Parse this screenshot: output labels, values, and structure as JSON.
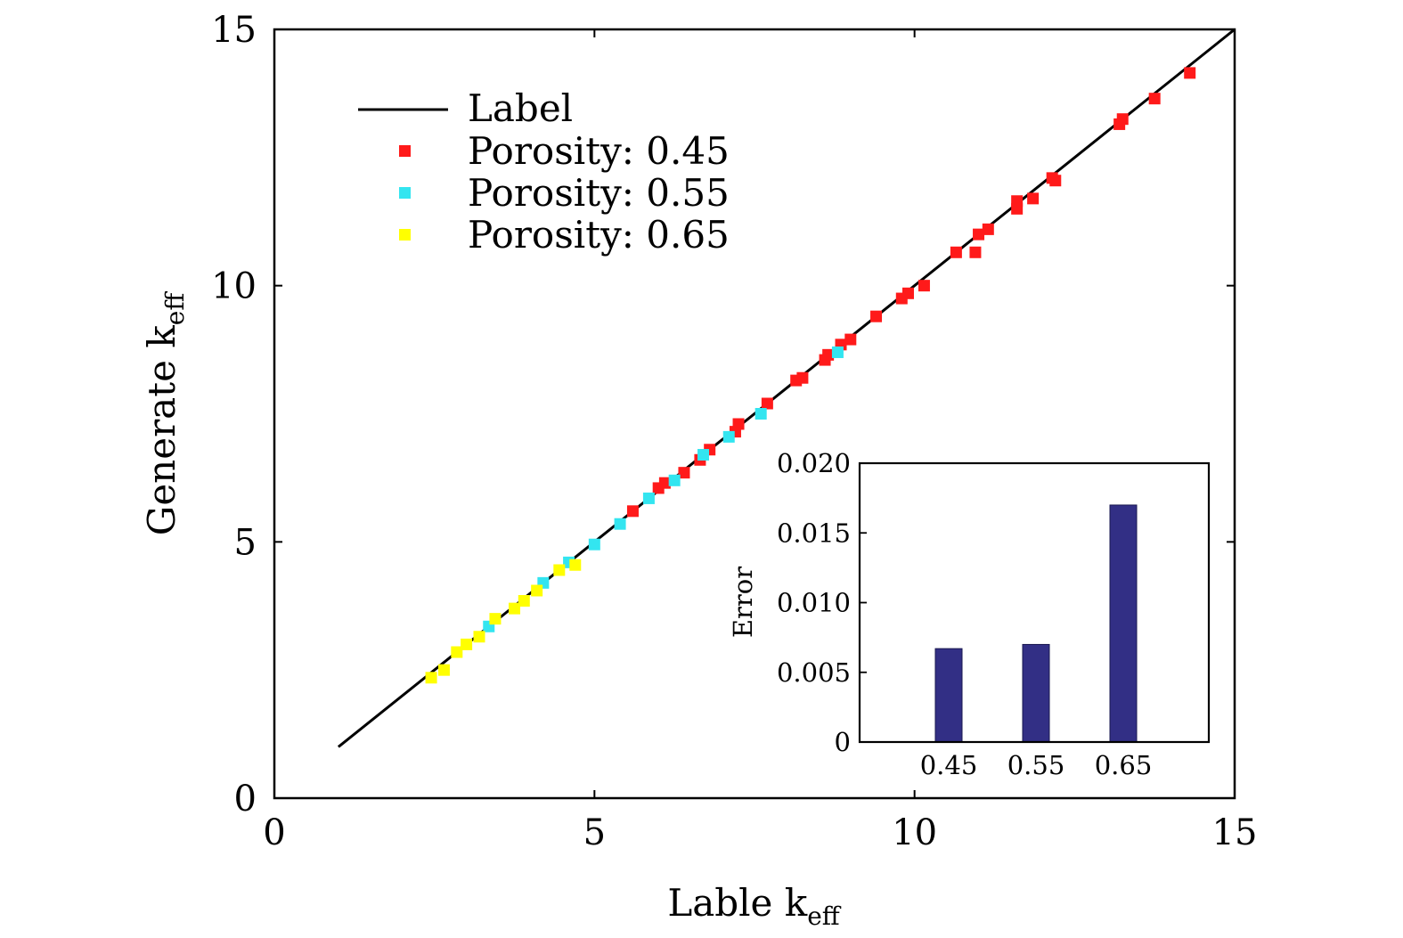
{
  "chart_data": [
    {
      "type": "scatter",
      "title": "",
      "xlabel": "Lable k",
      "xlabel_sub": "eff",
      "ylabel": "Generate k",
      "ylabel_sub": "eff",
      "xlim": [
        0,
        15
      ],
      "ylim": [
        0,
        15
      ],
      "xticks": [
        "0",
        "5",
        "10",
        "15"
      ],
      "yticks": [
        "0",
        "5",
        "10",
        "15"
      ],
      "grid": false,
      "legend_position": "top-left",
      "line": {
        "name": "Label",
        "x": [
          1,
          15
        ],
        "y": [
          1,
          15
        ],
        "color": "#000000"
      },
      "series": [
        {
          "name": "Porosity: 0.45",
          "color": "#ff1a1a",
          "x": [
            5.6,
            6.0,
            6.1,
            6.4,
            6.65,
            6.8,
            7.2,
            7.25,
            7.7,
            8.15,
            8.25,
            8.6,
            8.65,
            8.85,
            9.0,
            9.4,
            9.8,
            9.9,
            10.15,
            10.65,
            10.95,
            11.0,
            11.15,
            11.6,
            11.6,
            11.85,
            12.15,
            12.2,
            13.2,
            13.25,
            13.75,
            14.3
          ],
          "y": [
            5.6,
            6.05,
            6.15,
            6.35,
            6.6,
            6.8,
            7.15,
            7.3,
            7.7,
            8.15,
            8.2,
            8.55,
            8.65,
            8.85,
            8.95,
            9.4,
            9.75,
            9.85,
            10.0,
            10.65,
            10.65,
            11.0,
            11.1,
            11.5,
            11.65,
            11.7,
            12.1,
            12.05,
            13.15,
            13.25,
            13.65,
            14.15
          ]
        },
        {
          "name": "Porosity: 0.55",
          "color": "#33e5f0",
          "x": [
            3.35,
            4.2,
            4.6,
            5.0,
            5.4,
            5.85,
            6.25,
            6.7,
            7.1,
            7.6,
            8.8
          ],
          "y": [
            3.35,
            4.2,
            4.6,
            4.95,
            5.35,
            5.85,
            6.2,
            6.7,
            7.05,
            7.5,
            8.7
          ]
        },
        {
          "name": "Porosity: 0.65",
          "color": "#ffff00",
          "x": [
            2.45,
            2.65,
            2.85,
            3.0,
            3.2,
            3.45,
            3.75,
            3.9,
            4.1,
            4.45,
            4.7
          ],
          "y": [
            2.35,
            2.5,
            2.85,
            3.0,
            3.15,
            3.5,
            3.7,
            3.85,
            4.05,
            4.45,
            4.55
          ]
        }
      ]
    },
    {
      "type": "bar",
      "title": "",
      "xlabel": "",
      "ylabel": "Error",
      "categories": [
        "0.45",
        "0.55",
        "0.65"
      ],
      "values": [
        0.0067,
        0.007,
        0.017
      ],
      "ylim": [
        0,
        0.02
      ],
      "yticks": [
        "0",
        "0.005",
        "0.010",
        "0.015",
        "0.020"
      ],
      "color": "#322f85"
    }
  ]
}
